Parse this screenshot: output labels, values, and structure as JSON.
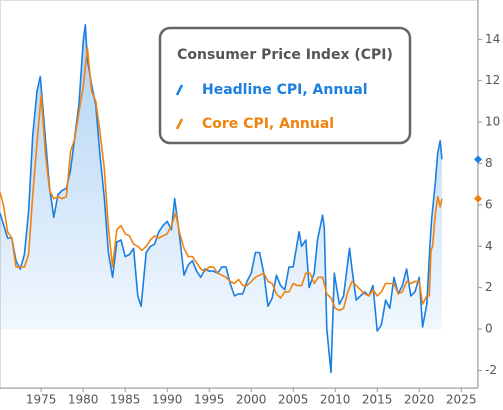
{
  "chart_data": {
    "type": "line",
    "legend_title": "Consumer Price Index (CPI)",
    "legend_position": "top-center",
    "y_axis_side": "right",
    "xlim": [
      1970.1,
      2027
    ],
    "xticks": [
      1975,
      1980,
      1985,
      1990,
      1995,
      2000,
      2005,
      2010,
      2015,
      2020,
      2025
    ],
    "ylim": [
      -2.85,
      15.9
    ],
    "yticks": [
      -2,
      0,
      2,
      4,
      6,
      8,
      10,
      12,
      14
    ],
    "series": [
      {
        "name": "Headline CPI, Annual",
        "color": "#1a7fe0",
        "area": true,
        "x": [
          1970.1,
          1971,
          1971.5,
          1972,
          1972.5,
          1973,
          1973.5,
          1974,
          1974.5,
          1974.9,
          1975.5,
          1976,
          1976.5,
          1977,
          1977.5,
          1978,
          1978.5,
          1979,
          1979.5,
          1980,
          1980.25,
          1980.5,
          1981,
          1981.5,
          1982,
          1982.5,
          1983,
          1983.5,
          1984,
          1984.5,
          1985,
          1985.5,
          1986,
          1986.5,
          1986.9,
          1987.5,
          1988,
          1988.5,
          1989,
          1989.5,
          1990,
          1990.5,
          1990.9,
          1991.5,
          1992,
          1992.5,
          1993,
          1993.5,
          1994,
          1994.5,
          1995,
          1995.5,
          1996,
          1996.5,
          1997,
          1997.5,
          1998,
          1998.5,
          1999,
          1999.5,
          2000,
          2000.5,
          2001,
          2001.5,
          2002,
          2002.5,
          2003,
          2003.5,
          2004,
          2004.5,
          2005,
          2005.7,
          2006,
          2006.5,
          2006.9,
          2007.5,
          2007.9,
          2008.5,
          2008.7,
          2009,
          2009.5,
          2009.9,
          2010.5,
          2011,
          2011.7,
          2012,
          2012.5,
          2013,
          2013.5,
          2014,
          2014.5,
          2015,
          2015.5,
          2016,
          2016.5,
          2017,
          2017.5,
          2018,
          2018.5,
          2019,
          2019.5,
          2020,
          2020.4,
          2020.9,
          2021.3,
          2021.5,
          2021.9,
          2022.2,
          2022.5,
          2022.7
        ],
        "values": [
          5.6,
          4.4,
          4.4,
          3.3,
          2.9,
          3.6,
          5.7,
          9.4,
          11.5,
          12.2,
          9.2,
          6.8,
          5.4,
          6.5,
          6.7,
          6.8,
          7.7,
          9.3,
          10.9,
          13.9,
          14.7,
          13.0,
          11.8,
          10.8,
          8.4,
          6.4,
          3.7,
          2.5,
          4.2,
          4.3,
          3.5,
          3.6,
          3.9,
          1.6,
          1.1,
          3.7,
          4.0,
          4.1,
          4.7,
          5.0,
          5.2,
          4.8,
          6.3,
          4.4,
          2.6,
          3.1,
          3.3,
          2.8,
          2.5,
          2.9,
          2.8,
          2.8,
          2.7,
          3.0,
          3.0,
          2.2,
          1.6,
          1.7,
          1.7,
          2.3,
          2.7,
          3.7,
          3.7,
          2.7,
          1.1,
          1.5,
          2.6,
          2.1,
          1.9,
          3.0,
          3.0,
          4.7,
          4.0,
          4.3,
          2.0,
          2.7,
          4.3,
          5.5,
          4.9,
          0.0,
          -2.1,
          2.7,
          1.2,
          1.6,
          3.9,
          2.9,
          1.4,
          1.6,
          1.8,
          1.6,
          2.1,
          -0.1,
          0.2,
          1.4,
          1.0,
          2.5,
          1.7,
          2.1,
          2.9,
          1.6,
          1.8,
          2.5,
          0.1,
          1.2,
          4.2,
          5.4,
          7.0,
          8.5,
          9.1,
          8.2
        ]
      },
      {
        "name": "Core CPI, Annual",
        "color": "#f0820f",
        "x": [
          1970.1,
          1970.5,
          1971,
          1971.5,
          1972,
          1972.5,
          1973,
          1973.5,
          1974,
          1974.5,
          1975,
          1975.5,
          1976,
          1976.5,
          1977,
          1977.5,
          1978,
          1978.5,
          1979,
          1979.5,
          1980,
          1980.5,
          1981,
          1981.5,
          1982,
          1982.5,
          1983,
          1983.5,
          1984,
          1984.5,
          1985,
          1985.5,
          1986,
          1986.5,
          1987,
          1987.5,
          1988,
          1988.5,
          1989,
          1989.5,
          1990,
          1990.5,
          1991,
          1991.5,
          1992,
          1992.5,
          1993,
          1993.5,
          1994,
          1994.5,
          1995,
          1995.5,
          1996,
          1996.5,
          1997,
          1997.5,
          1998,
          1998.5,
          1999,
          1999.5,
          2000,
          2000.5,
          2001,
          2001.5,
          2002,
          2002.5,
          2003,
          2003.5,
          2004,
          2004.5,
          2005,
          2005.5,
          2006,
          2006.5,
          2007,
          2007.5,
          2008,
          2008.5,
          2009,
          2009.5,
          2010,
          2010.5,
          2011,
          2011.5,
          2012,
          2012.5,
          2013,
          2013.5,
          2014,
          2014.5,
          2015,
          2015.5,
          2016,
          2016.5,
          2017,
          2017.5,
          2018,
          2018.5,
          2019,
          2019.5,
          2020,
          2020.4,
          2020.9,
          2021.2,
          2021.4,
          2021.6,
          2021.9,
          2022.2,
          2022.5,
          2022.7
        ],
        "values": [
          6.6,
          6.0,
          4.7,
          4.4,
          3.0,
          3.0,
          3.0,
          3.6,
          6.5,
          9.0,
          11.3,
          8.5,
          6.7,
          6.3,
          6.4,
          6.3,
          6.4,
          8.6,
          9.2,
          10.5,
          11.7,
          13.6,
          11.5,
          11.0,
          9.5,
          7.8,
          4.9,
          3.0,
          4.8,
          5.0,
          4.6,
          4.5,
          4.1,
          4.0,
          3.8,
          4.0,
          4.3,
          4.5,
          4.4,
          4.5,
          4.6,
          5.0,
          5.6,
          4.6,
          3.9,
          3.5,
          3.5,
          3.2,
          2.9,
          2.8,
          3.0,
          3.0,
          2.7,
          2.6,
          2.5,
          2.3,
          2.2,
          2.4,
          2.1,
          2.1,
          2.3,
          2.5,
          2.6,
          2.7,
          2.3,
          2.2,
          1.7,
          1.5,
          1.8,
          1.8,
          2.2,
          2.1,
          2.1,
          2.7,
          2.7,
          2.2,
          2.5,
          2.5,
          1.7,
          1.5,
          1.0,
          0.9,
          1.0,
          1.8,
          2.3,
          2.1,
          1.9,
          1.7,
          1.6,
          1.9,
          1.6,
          1.8,
          2.2,
          2.2,
          2.2,
          1.7,
          1.8,
          2.3,
          2.2,
          2.3,
          2.3,
          1.2,
          1.6,
          1.6,
          3.8,
          4.0,
          5.5,
          6.4,
          5.9,
          6.3
        ]
      }
    ]
  }
}
